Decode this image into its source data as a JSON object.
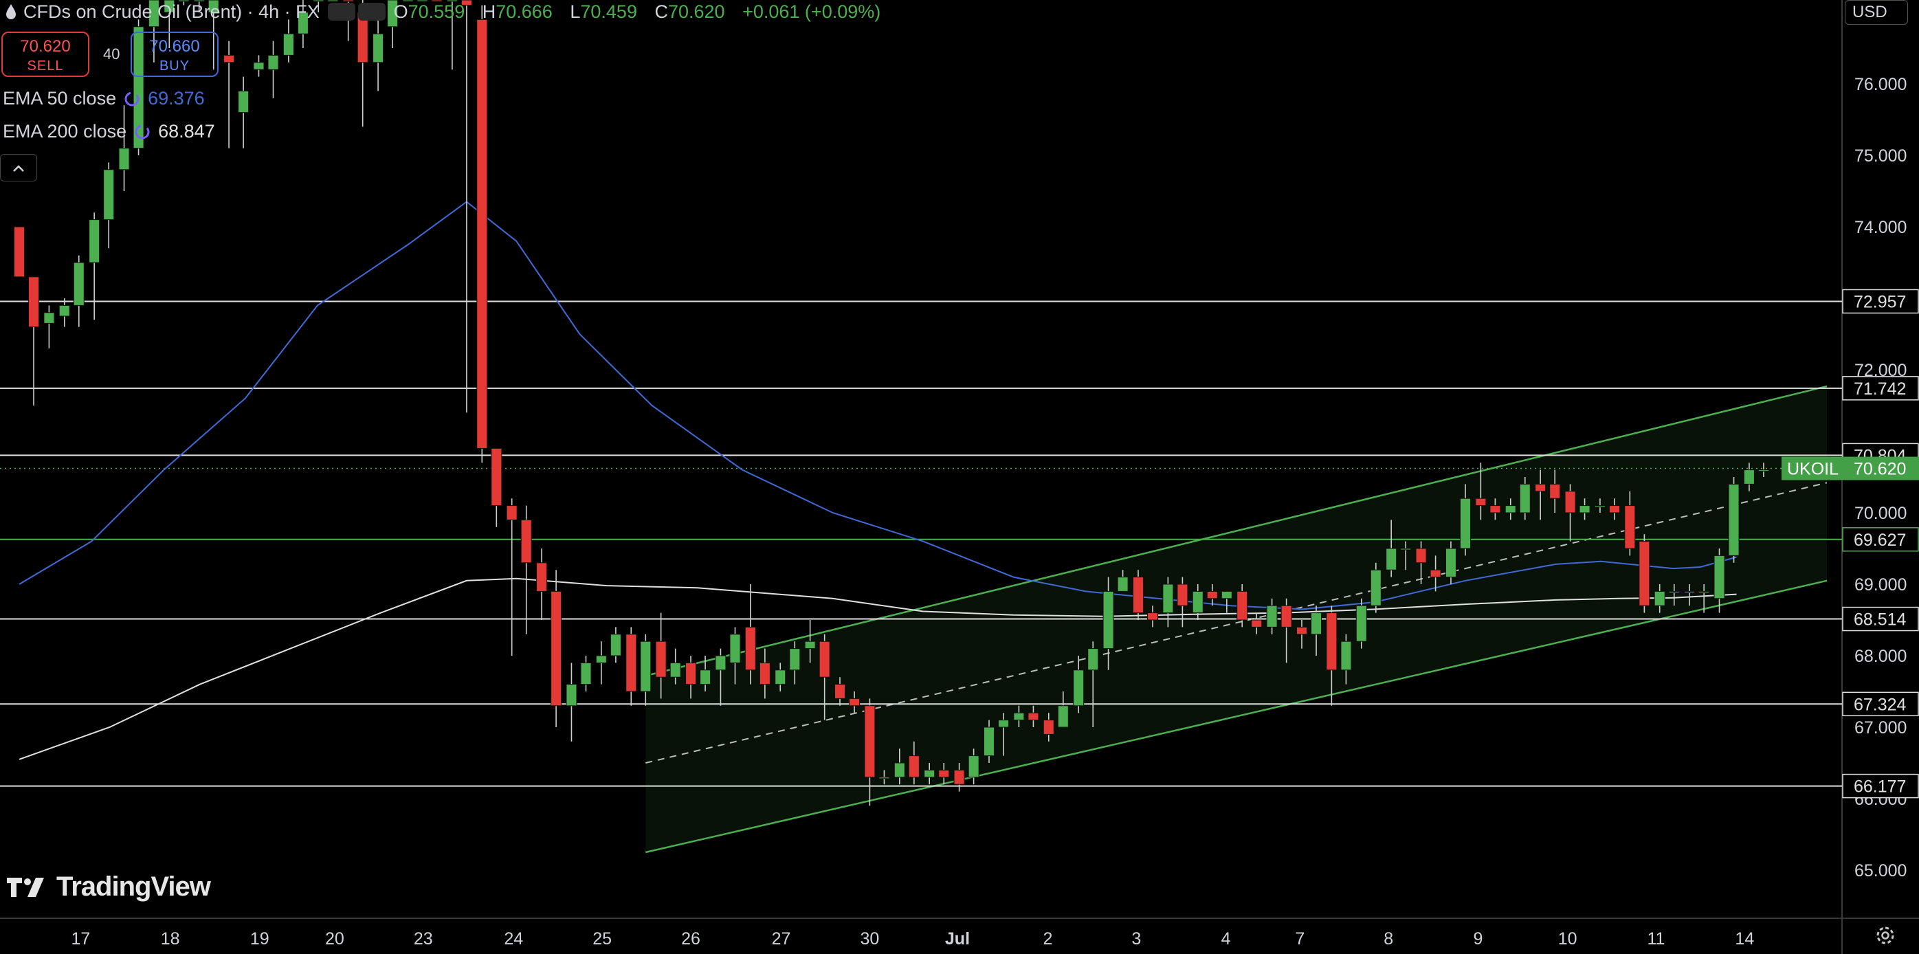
{
  "header": {
    "title": "CFDs on Crude Oil (Brent) · 4h · FX",
    "ohlc": [
      {
        "label": "O",
        "value": "70.559"
      },
      {
        "label": "H",
        "value": "70.666"
      },
      {
        "label": "L",
        "value": "70.459"
      },
      {
        "label": "C",
        "value": "70.620"
      },
      {
        "label": "",
        "value": "+0.061 (+0.09%)"
      }
    ]
  },
  "trade": {
    "sell_price": "70.620",
    "sell_label": "SELL",
    "buy_price": "70.660",
    "buy_label": "BUY",
    "spread": "40"
  },
  "indicators": {
    "ema50": {
      "label": "EMA 50 close",
      "value": "69.376",
      "color": "#3f6ad8"
    },
    "ema200": {
      "label": "EMA 200 close",
      "value": "68.847",
      "color": "#e0e0e0"
    }
  },
  "currency": "USD",
  "brand": "TradingView",
  "icons": {
    "settings": "gear-icon",
    "collapse": "chevron-up-icon",
    "logo": "tradingview-logo-icon"
  },
  "colors": {
    "up": "#4caf50",
    "down": "#e53935",
    "channel": "#4caf50"
  },
  "chart_data": {
    "type": "candlestick",
    "symbol_badge": "UKOIL",
    "current_price": 70.62,
    "ylim": [
      64.55,
      77.15
    ],
    "y_ticks": [
      "65.000",
      "66.000",
      "67.000",
      "68.000",
      "69.000",
      "70.000",
      "72.000",
      "74.000",
      "75.000",
      "76.000"
    ],
    "x_ticks": [
      {
        "label": "17",
        "t": 0.68
      },
      {
        "label": "18",
        "t": 1.67
      },
      {
        "label": "19",
        "t": 2.66
      },
      {
        "label": "20",
        "t": 3.49
      },
      {
        "label": "23",
        "t": 4.47
      },
      {
        "label": "24",
        "t": 5.47
      },
      {
        "label": "25",
        "t": 6.45
      },
      {
        "label": "26",
        "t": 7.43
      },
      {
        "label": "27",
        "t": 8.43
      },
      {
        "label": "30",
        "t": 9.41
      },
      {
        "label": "Jul",
        "t": 10.38
      },
      {
        "label": "2",
        "t": 11.38
      },
      {
        "label": "3",
        "t": 12.36
      },
      {
        "label": "4",
        "t": 13.35
      },
      {
        "label": "7",
        "t": 14.17
      },
      {
        "label": "8",
        "t": 15.15
      },
      {
        "label": "9",
        "t": 16.14
      },
      {
        "label": "10",
        "t": 17.13
      },
      {
        "label": "11",
        "t": 18.11
      },
      {
        "label": "14",
        "t": 19.09
      }
    ],
    "levels": [
      {
        "value": 72.957,
        "label": "72.957",
        "color": "#e0e0e0"
      },
      {
        "value": 71.742,
        "label": "71.742",
        "color": "#e0e0e0"
      },
      {
        "value": 70.804,
        "label": "70.804",
        "color": "#e0e0e0"
      },
      {
        "value": 69.627,
        "label": "69.627",
        "color": "#4caf50"
      },
      {
        "value": 68.514,
        "label": "68.514",
        "color": "#e0e0e0"
      },
      {
        "value": 67.324,
        "label": "67.324",
        "color": "#e0e0e0"
      },
      {
        "value": 66.177,
        "label": "66.177",
        "color": "#e0e0e0"
      }
    ],
    "channel": {
      "upper": [
        [
          6.93,
          67.72
        ],
        [
          20.0,
          71.77
        ]
      ],
      "lower": [
        [
          6.93,
          65.25
        ],
        [
          20.0,
          69.05
        ]
      ],
      "mid": [
        [
          6.93,
          66.5
        ],
        [
          20.0,
          70.42
        ]
      ]
    },
    "ema50_line": [
      [
        0,
        69.0
      ],
      [
        0.8,
        69.6
      ],
      [
        1.6,
        70.6
      ],
      [
        2.5,
        71.6
      ],
      [
        3.3,
        72.9
      ],
      [
        4.3,
        73.75
      ],
      [
        4.95,
        74.35
      ],
      [
        5.5,
        73.8
      ],
      [
        6.2,
        72.5
      ],
      [
        7.0,
        71.5
      ],
      [
        8.0,
        70.6
      ],
      [
        9.0,
        70.0
      ],
      [
        10.0,
        69.6
      ],
      [
        11.0,
        69.1
      ],
      [
        11.8,
        68.9
      ],
      [
        12.6,
        68.8
      ],
      [
        13.4,
        68.7
      ],
      [
        14.2,
        68.65
      ],
      [
        15.0,
        68.75
      ],
      [
        16.0,
        69.05
      ],
      [
        17.0,
        69.28
      ],
      [
        17.5,
        69.32
      ],
      [
        18.3,
        69.22
      ],
      [
        18.6,
        69.24
      ],
      [
        19.0,
        69.38
      ]
    ],
    "ema200_line": [
      [
        0,
        66.55
      ],
      [
        1.0,
        67.0
      ],
      [
        2.0,
        67.6
      ],
      [
        3.0,
        68.1
      ],
      [
        4.0,
        68.6
      ],
      [
        4.95,
        69.05
      ],
      [
        5.5,
        69.08
      ],
      [
        6.5,
        68.98
      ],
      [
        7.5,
        68.95
      ],
      [
        9.0,
        68.8
      ],
      [
        10.0,
        68.62
      ],
      [
        11.0,
        68.57
      ],
      [
        12.0,
        68.55
      ],
      [
        13.0,
        68.58
      ],
      [
        14.0,
        68.6
      ],
      [
        15.0,
        68.65
      ],
      [
        16.0,
        68.72
      ],
      [
        17.0,
        68.78
      ],
      [
        17.7,
        68.8
      ],
      [
        18.3,
        68.81
      ],
      [
        19.0,
        68.86
      ]
    ],
    "candles": [
      [
        0.0,
        74.0,
        73.3,
        74.0,
        73.3
      ],
      [
        0.16,
        73.3,
        72.6,
        73.3,
        71.5
      ],
      [
        0.33,
        72.65,
        72.8,
        72.9,
        72.3
      ],
      [
        0.5,
        72.75,
        72.9,
        73.0,
        72.6
      ],
      [
        0.66,
        72.9,
        73.5,
        73.6,
        72.6
      ],
      [
        0.83,
        73.5,
        74.1,
        74.2,
        72.7
      ],
      [
        0.99,
        74.1,
        74.8,
        74.9,
        73.7
      ],
      [
        1.16,
        74.8,
        75.1,
        75.7,
        74.5
      ],
      [
        1.32,
        75.1,
        76.8,
        76.9,
        75.0
      ],
      [
        1.49,
        76.8,
        77.2,
        77.3,
        76.3
      ],
      [
        1.66,
        77.0,
        77.2,
        77.4,
        76.5
      ],
      [
        1.82,
        77.3,
        77.5,
        77.6,
        77.1
      ],
      [
        1.99,
        77.4,
        77.8,
        77.9,
        77.0
      ],
      [
        2.15,
        77.0,
        77.4,
        77.6,
        76.2
      ],
      [
        2.32,
        76.4,
        76.3,
        76.6,
        75.1
      ],
      [
        2.48,
        75.6,
        75.9,
        76.1,
        75.1
      ],
      [
        2.65,
        76.2,
        76.3,
        76.4,
        76.1
      ],
      [
        2.81,
        76.2,
        76.4,
        76.6,
        75.8
      ],
      [
        2.98,
        76.4,
        76.7,
        76.9,
        76.3
      ],
      [
        3.14,
        76.7,
        77.0,
        77.4,
        76.5
      ],
      [
        3.31,
        77.2,
        77.5,
        77.6,
        77.0
      ],
      [
        3.47,
        77.5,
        77.8,
        77.9,
        77.3
      ],
      [
        3.64,
        77.6,
        77.4,
        77.8,
        76.6
      ],
      [
        3.8,
        77.0,
        76.3,
        77.2,
        75.4
      ],
      [
        3.97,
        76.3,
        76.7,
        76.9,
        75.9
      ],
      [
        4.13,
        76.8,
        77.3,
        77.4,
        76.5
      ],
      [
        4.3,
        77.4,
        77.6,
        77.8,
        77.2
      ],
      [
        4.46,
        77.7,
        77.9,
        78.0,
        77.5
      ],
      [
        4.62,
        77.9,
        77.7,
        78.0,
        77.4
      ],
      [
        4.79,
        77.4,
        77.6,
        77.8,
        76.2
      ],
      [
        4.95,
        77.3,
        77.1,
        77.4,
        71.4
      ],
      [
        5.12,
        76.9,
        70.9,
        77.1,
        70.7
      ],
      [
        5.28,
        70.9,
        70.1,
        70.9,
        69.8
      ],
      [
        5.45,
        70.1,
        69.9,
        70.2,
        68.0
      ],
      [
        5.61,
        69.9,
        69.3,
        70.1,
        68.3
      ],
      [
        5.78,
        69.3,
        68.9,
        69.5,
        68.5
      ],
      [
        5.94,
        68.9,
        67.3,
        69.2,
        67.0
      ],
      [
        6.11,
        67.3,
        67.6,
        67.9,
        66.8
      ],
      [
        6.27,
        67.6,
        67.9,
        68.0,
        67.5
      ],
      [
        6.44,
        67.9,
        68.0,
        68.2,
        67.6
      ],
      [
        6.6,
        68.0,
        68.3,
        68.4,
        67.9
      ],
      [
        6.77,
        68.3,
        67.5,
        68.4,
        67.3
      ],
      [
        6.93,
        67.5,
        68.2,
        68.3,
        67.3
      ],
      [
        7.1,
        68.2,
        67.7,
        68.6,
        67.4
      ],
      [
        7.26,
        67.7,
        67.9,
        68.1,
        67.6
      ],
      [
        7.43,
        67.9,
        67.6,
        68.0,
        67.4
      ],
      [
        7.59,
        67.6,
        67.8,
        68.0,
        67.5
      ],
      [
        7.76,
        67.8,
        68.0,
        68.1,
        67.3
      ],
      [
        7.92,
        67.9,
        68.3,
        68.4,
        67.6
      ],
      [
        8.09,
        68.4,
        67.8,
        69.0,
        67.6
      ],
      [
        8.25,
        67.9,
        67.6,
        68.1,
        67.4
      ],
      [
        8.42,
        67.6,
        67.8,
        67.9,
        67.5
      ],
      [
        8.58,
        67.8,
        68.1,
        68.2,
        67.6
      ],
      [
        8.75,
        68.1,
        68.2,
        68.5,
        67.9
      ],
      [
        8.91,
        68.2,
        67.7,
        68.3,
        67.1
      ],
      [
        9.08,
        67.6,
        67.4,
        67.7,
        67.3
      ],
      [
        9.24,
        67.4,
        67.3,
        67.5,
        67.2
      ],
      [
        9.41,
        67.3,
        66.3,
        67.4,
        65.9
      ],
      [
        9.57,
        66.3,
        66.3,
        66.4,
        66.2
      ],
      [
        9.74,
        66.3,
        66.5,
        66.7,
        66.2
      ],
      [
        9.9,
        66.6,
        66.3,
        66.8,
        66.2
      ],
      [
        10.07,
        66.3,
        66.4,
        66.5,
        66.2
      ],
      [
        10.23,
        66.4,
        66.3,
        66.5,
        66.2
      ],
      [
        10.4,
        66.4,
        66.2,
        66.5,
        66.1
      ],
      [
        10.56,
        66.3,
        66.6,
        66.7,
        66.2
      ],
      [
        10.73,
        66.6,
        67.0,
        67.1,
        66.5
      ],
      [
        10.89,
        67.0,
        67.1,
        67.2,
        66.6
      ],
      [
        11.06,
        67.1,
        67.2,
        67.3,
        67.0
      ],
      [
        11.22,
        67.2,
        67.1,
        67.3,
        67.0
      ],
      [
        11.39,
        67.1,
        66.9,
        67.2,
        66.8
      ],
      [
        11.55,
        67.0,
        67.3,
        67.5,
        67.0
      ],
      [
        11.72,
        67.3,
        67.8,
        68.0,
        67.2
      ],
      [
        11.88,
        67.8,
        68.1,
        68.2,
        67.0
      ],
      [
        12.05,
        68.1,
        68.9,
        69.1,
        67.8
      ],
      [
        12.21,
        68.9,
        69.1,
        69.2,
        68.9
      ],
      [
        12.38,
        69.1,
        68.6,
        69.2,
        68.5
      ],
      [
        12.54,
        68.6,
        68.5,
        68.7,
        68.4
      ],
      [
        12.71,
        68.6,
        69.0,
        69.1,
        68.4
      ],
      [
        12.87,
        69.0,
        68.7,
        69.1,
        68.4
      ],
      [
        13.04,
        68.6,
        68.9,
        69.0,
        68.5
      ],
      [
        13.2,
        68.9,
        68.8,
        69.0,
        68.7
      ],
      [
        13.36,
        68.8,
        68.9,
        68.9,
        68.6
      ],
      [
        13.53,
        68.9,
        68.5,
        69.0,
        68.4
      ],
      [
        13.69,
        68.5,
        68.4,
        68.6,
        68.3
      ],
      [
        13.86,
        68.4,
        68.7,
        68.8,
        68.3
      ],
      [
        14.02,
        68.7,
        68.4,
        68.8,
        67.9
      ],
      [
        14.19,
        68.4,
        68.3,
        68.5,
        68.1
      ],
      [
        14.35,
        68.3,
        68.6,
        68.7,
        68.0
      ],
      [
        14.52,
        68.6,
        67.8,
        68.7,
        67.3
      ],
      [
        14.68,
        67.8,
        68.2,
        68.3,
        67.6
      ],
      [
        14.85,
        68.2,
        68.7,
        68.8,
        68.1
      ],
      [
        15.01,
        68.7,
        69.2,
        69.3,
        68.6
      ],
      [
        15.18,
        69.2,
        69.5,
        69.9,
        69.1
      ],
      [
        15.34,
        69.5,
        69.5,
        69.6,
        69.2
      ],
      [
        15.51,
        69.5,
        69.3,
        69.6,
        69.0
      ],
      [
        15.67,
        69.2,
        69.1,
        69.4,
        68.9
      ],
      [
        15.84,
        69.1,
        69.5,
        69.6,
        69.0
      ],
      [
        16.0,
        69.5,
        70.2,
        70.4,
        69.4
      ],
      [
        16.17,
        70.2,
        70.1,
        70.7,
        69.9
      ],
      [
        16.33,
        70.1,
        70.0,
        70.2,
        69.9
      ],
      [
        16.5,
        70.0,
        70.1,
        70.2,
        69.9
      ],
      [
        16.66,
        70.0,
        70.4,
        70.5,
        69.9
      ],
      [
        16.83,
        70.4,
        70.3,
        70.6,
        69.9
      ],
      [
        16.99,
        70.4,
        70.2,
        70.6,
        70.0
      ],
      [
        17.16,
        70.3,
        70.0,
        70.4,
        69.6
      ],
      [
        17.32,
        70.0,
        70.1,
        70.2,
        69.9
      ],
      [
        17.49,
        70.1,
        70.1,
        70.2,
        70.0
      ],
      [
        17.65,
        70.1,
        70.0,
        70.2,
        69.9
      ],
      [
        17.82,
        70.1,
        69.5,
        70.3,
        69.4
      ],
      [
        17.98,
        69.6,
        68.7,
        69.7,
        68.6
      ],
      [
        18.15,
        68.7,
        68.9,
        69.0,
        68.6
      ],
      [
        18.31,
        68.9,
        68.9,
        69.0,
        68.7
      ],
      [
        18.48,
        68.9,
        68.9,
        69.0,
        68.7
      ],
      [
        18.64,
        68.9,
        68.9,
        69.0,
        68.6
      ],
      [
        18.81,
        68.8,
        69.4,
        69.5,
        68.6
      ],
      [
        18.97,
        69.4,
        70.4,
        70.5,
        69.3
      ],
      [
        19.14,
        70.4,
        70.6,
        70.7,
        70.3
      ],
      [
        19.3,
        70.6,
        70.6,
        70.7,
        70.5
      ]
    ]
  }
}
